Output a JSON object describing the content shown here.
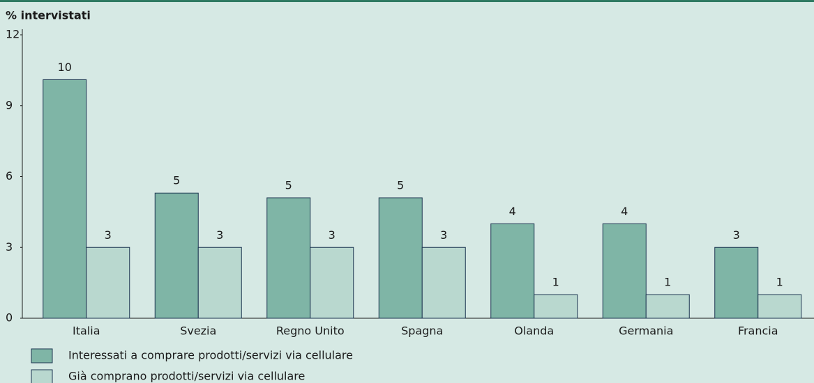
{
  "chart_data": {
    "type": "bar",
    "y_label": "% intervistati",
    "categories": [
      "Italia",
      "Svezia",
      "Regno Unito",
      "Spagna",
      "Olanda",
      "Germania",
      "Francia"
    ],
    "series": [
      {
        "name": "Interessati a comprare prodotti/servizi via cellulare",
        "color": "#7fb5a6",
        "values": [
          10.1,
          5.3,
          5.1,
          5.1,
          4,
          4,
          3
        ],
        "value_labels": [
          "10",
          "5",
          "5",
          "5",
          "4",
          "4",
          "3"
        ]
      },
      {
        "name": "Già comprano prodotti/servizi via cellulare",
        "color": "#b9d8cf",
        "values": [
          3,
          3,
          3,
          3,
          1,
          1,
          1
        ],
        "value_labels": [
          "3",
          "3",
          "3",
          "3",
          "1",
          "1",
          "1"
        ]
      }
    ],
    "ylim": [
      0,
      12
    ],
    "yticks": [
      0,
      3,
      6,
      9,
      12
    ],
    "grid": false
  }
}
